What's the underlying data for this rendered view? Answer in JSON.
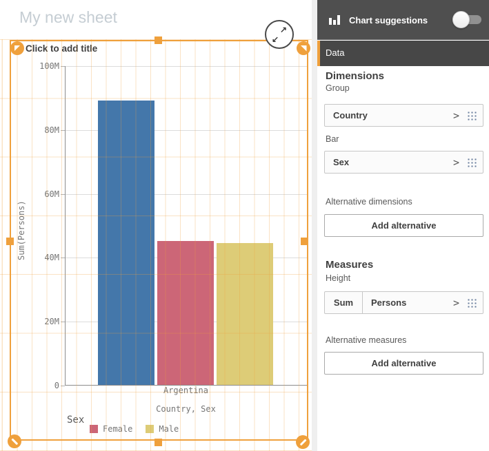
{
  "sheet": {
    "title": "My new sheet",
    "chart_title_placeholder": "Click to add title"
  },
  "chart_data": {
    "type": "bar",
    "title": "",
    "x_axis_title": "Country, Sex",
    "y_axis_title": "Sum(Persons)",
    "category": "Argentina",
    "ylim_M": [
      0,
      100
    ],
    "yticks_bottom_up": [
      "0",
      "20M",
      "40M",
      "60M",
      "80M",
      "100M"
    ],
    "grid": true,
    "legend_position": "bottom",
    "legend_title": "Sex",
    "bars": [
      {
        "legend": null,
        "color": "#4477AA",
        "value_M": 89
      },
      {
        "legend": "Female",
        "color": "#CC6677",
        "value_M": 45
      },
      {
        "legend": "Male",
        "color": "#DDCC77",
        "value_M": 44.4
      }
    ],
    "legend_items": [
      {
        "label": "Female",
        "color": "#CC6677"
      },
      {
        "label": "Male",
        "color": "#DDCC77"
      }
    ]
  },
  "panel": {
    "header": {
      "label": "Chart suggestions",
      "toggle_state": "off"
    },
    "tab": "Data",
    "dimensions": {
      "heading": "Dimensions",
      "rows": [
        {
          "label": "Group",
          "field": "Country"
        },
        {
          "label": "Bar",
          "field": "Sex"
        }
      ]
    },
    "alternative_dimensions": {
      "label": "Alternative dimensions",
      "button": "Add alternative"
    },
    "measures": {
      "heading": "Measures",
      "rows": [
        {
          "label": "Height",
          "prefix": "Sum",
          "field": "Persons"
        }
      ]
    },
    "alternative_measures": {
      "label": "Alternative measures",
      "button": "Add alternative"
    }
  },
  "colors": {
    "accent_orange": "#EFA03C",
    "panel_header_bg": "#4F4F4F",
    "tab_bg": "#474747",
    "bar_blue": "#4477AA",
    "bar_red": "#CC6677",
    "bar_yellow": "#DDCC77",
    "sheet_title_text": "#C5CDD3"
  }
}
